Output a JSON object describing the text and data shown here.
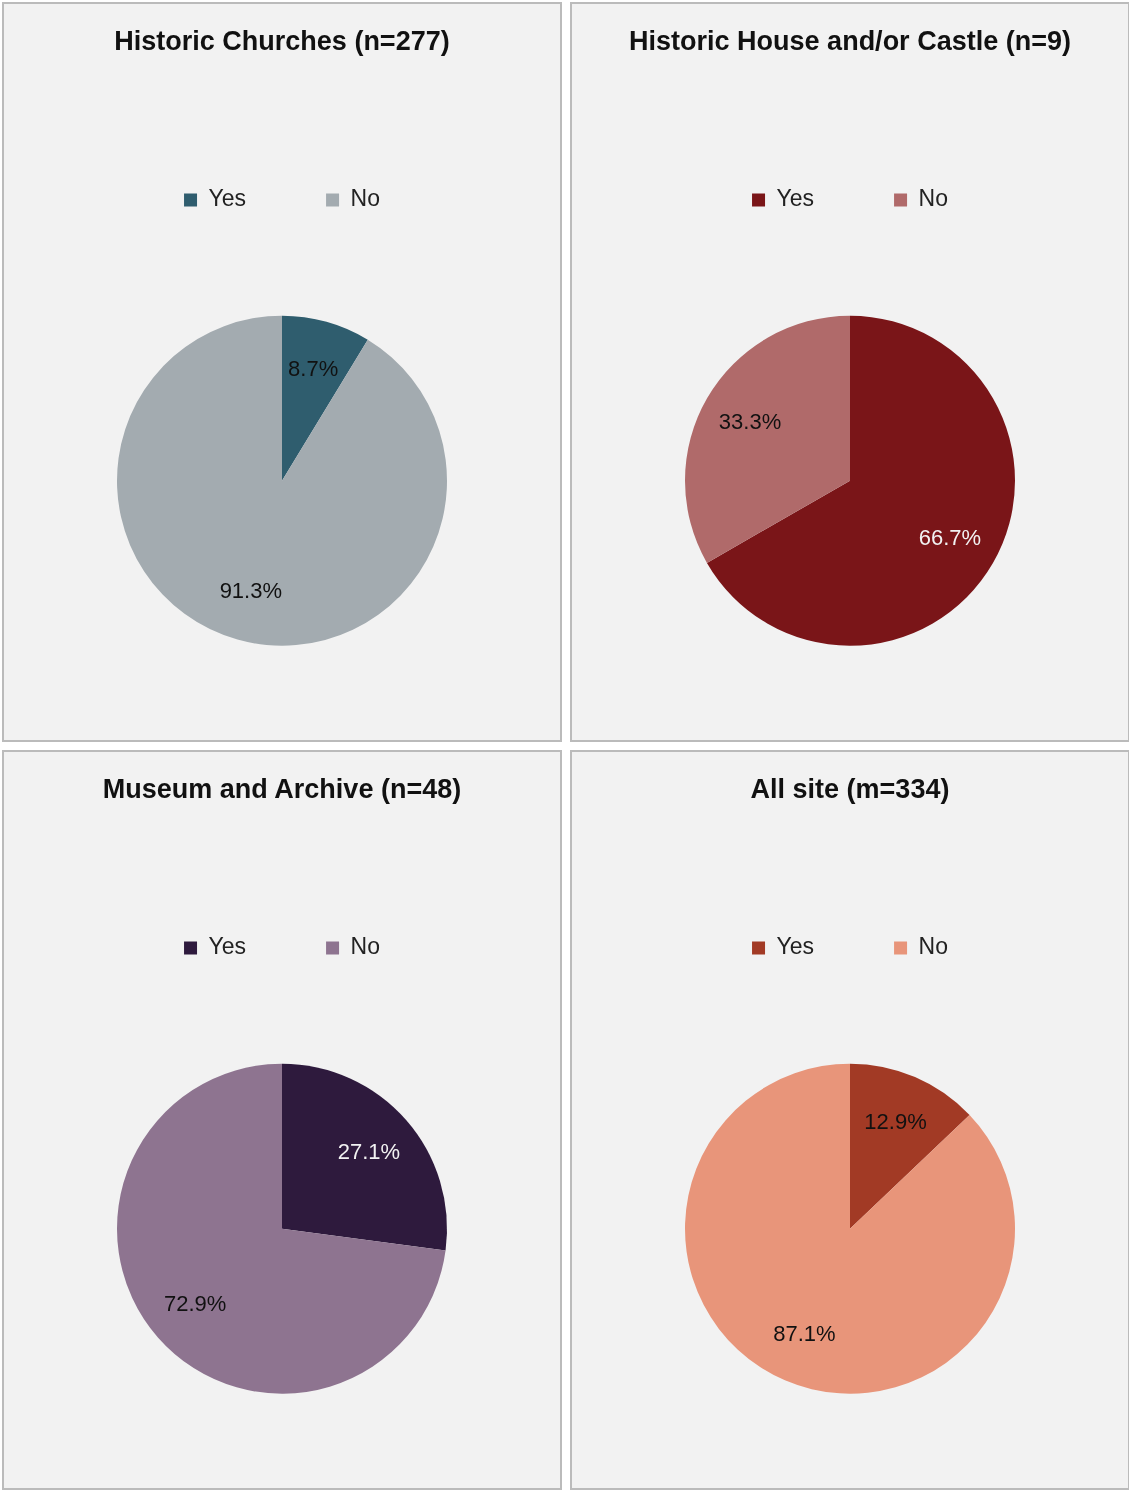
{
  "chart_data": [
    {
      "type": "pie",
      "title": "Historic Churches (n=277)",
      "categories": [
        "Yes",
        "No"
      ],
      "values": [
        8.7,
        91.3
      ],
      "colors": [
        "#2f5d6e",
        "#a3abb0"
      ],
      "value_labels": [
        "8.7%",
        "91.3%"
      ],
      "legend": "top"
    },
    {
      "type": "pie",
      "title": "Historic House and/or Castle (n=9)",
      "categories": [
        "Yes",
        "No"
      ],
      "values": [
        66.7,
        33.3
      ],
      "colors": [
        "#7a1518",
        "#b06a6a"
      ],
      "value_labels": [
        "66.7%",
        "33.3%"
      ],
      "legend": "top"
    },
    {
      "type": "pie",
      "title": "Museum and Archive (n=48)",
      "categories": [
        "Yes",
        "No"
      ],
      "values": [
        27.1,
        72.9
      ],
      "colors": [
        "#2e1a3d",
        "#8e7490"
      ],
      "value_labels": [
        "27.1%",
        "72.9%"
      ],
      "legend": "top"
    },
    {
      "type": "pie",
      "title": "All site (m=334)",
      "categories": [
        "Yes",
        "No"
      ],
      "values": [
        12.9,
        87.1
      ],
      "colors": [
        "#a23a25",
        "#e8957a"
      ],
      "value_labels": [
        "12.9%",
        "87.1%"
      ],
      "legend": "top"
    }
  ]
}
